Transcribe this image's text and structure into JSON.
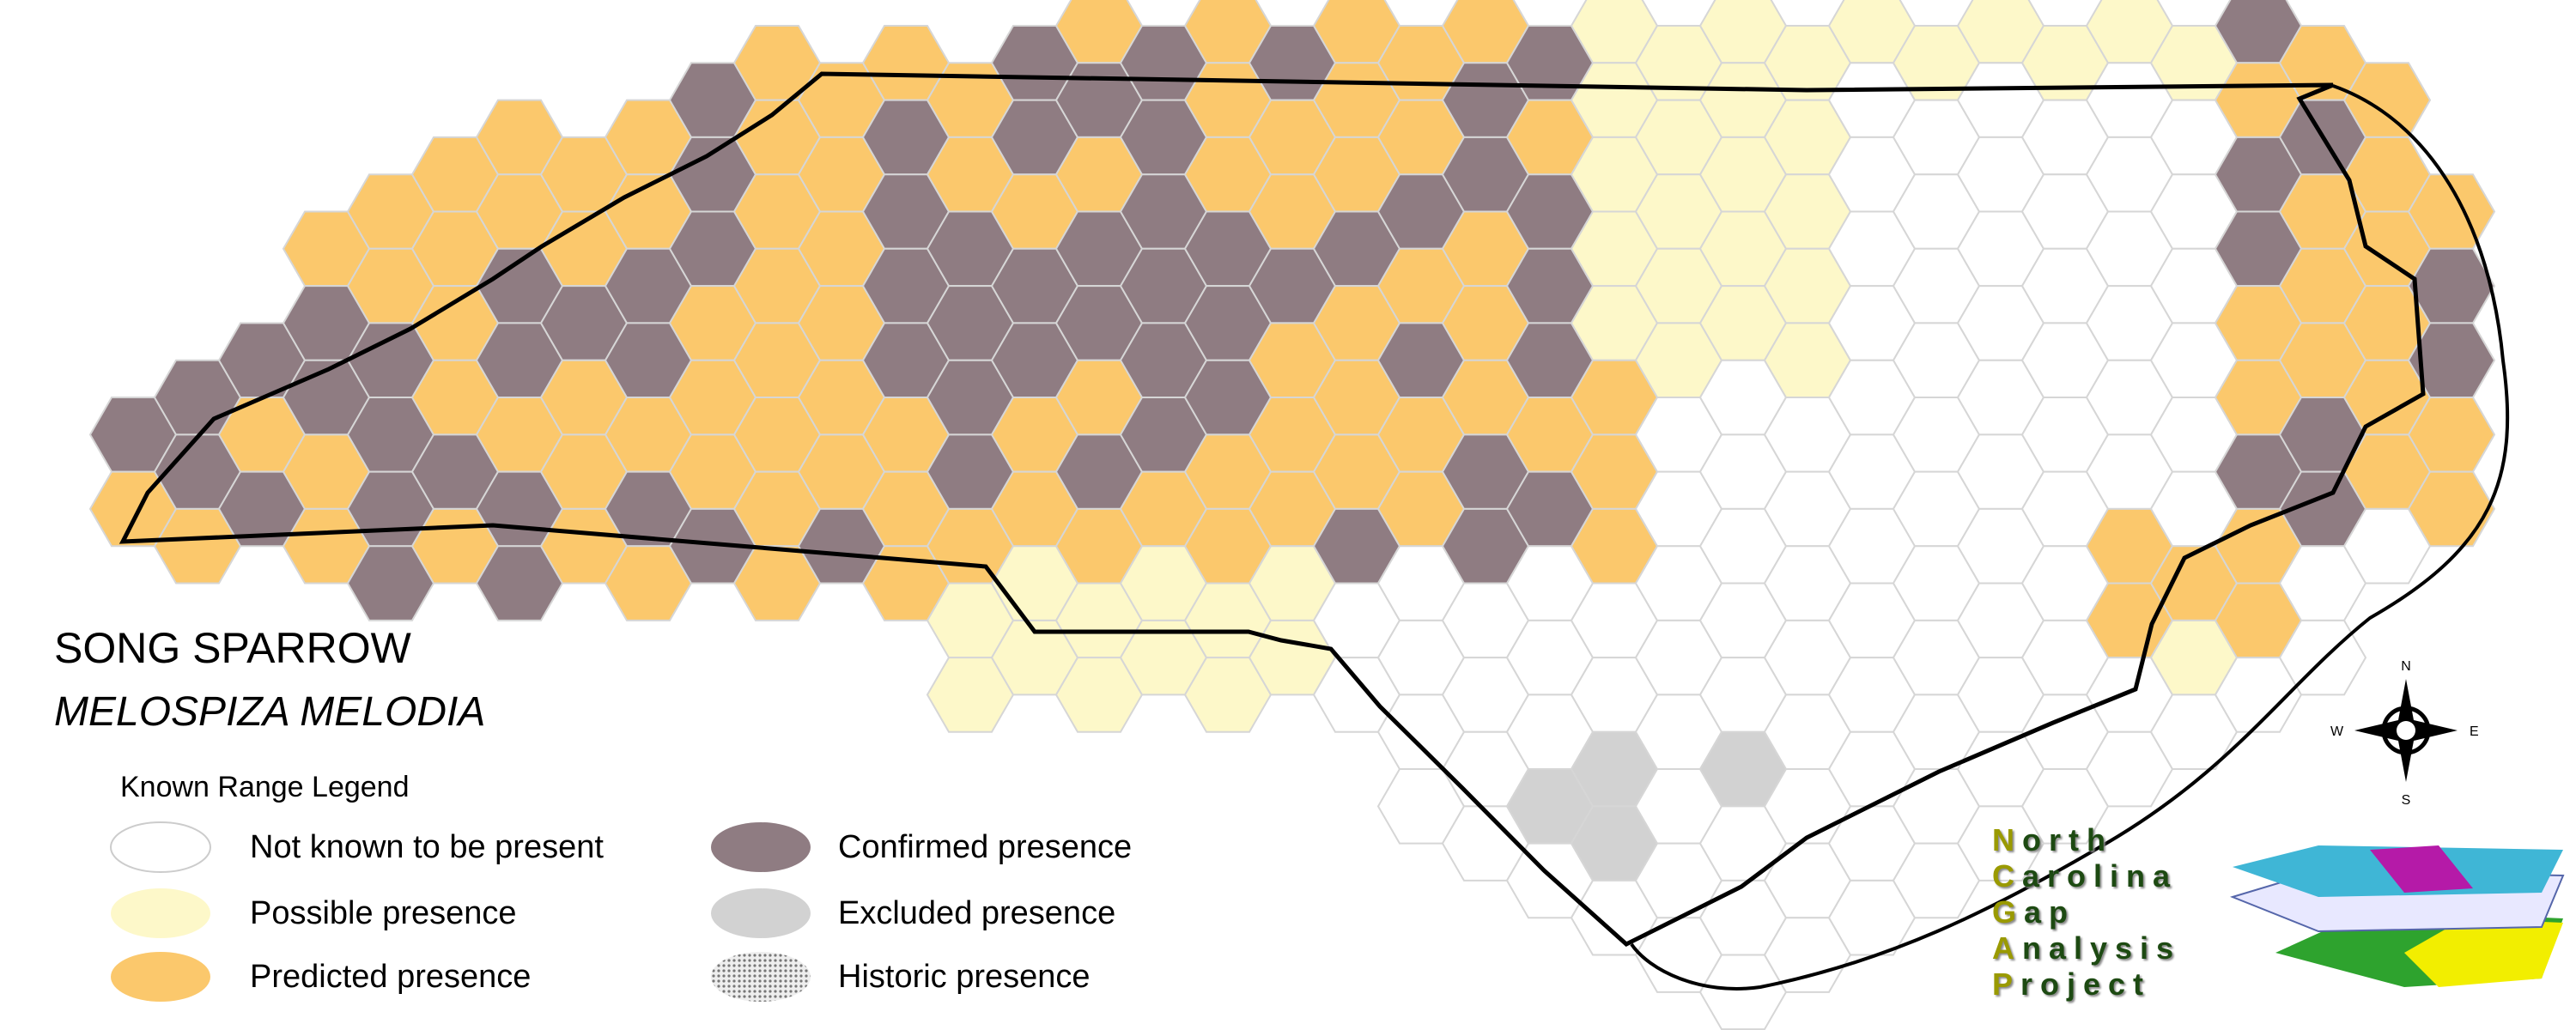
{
  "title": "SONG SPARROW",
  "subtitle": "MELOSPIZA MELODIA",
  "legend": {
    "title": "Known Range Legend",
    "items": [
      "Not known to be present",
      "Possible presence",
      "Predicted presence",
      "Confirmed presence",
      "Excluded presence",
      "Historic presence"
    ]
  },
  "compass": {
    "n": "N",
    "s": "S",
    "e": "E",
    "w": "W"
  },
  "logo": {
    "lines": [
      "North",
      "Carolina",
      "Gap",
      "Analysis",
      "Project"
    ]
  }
}
